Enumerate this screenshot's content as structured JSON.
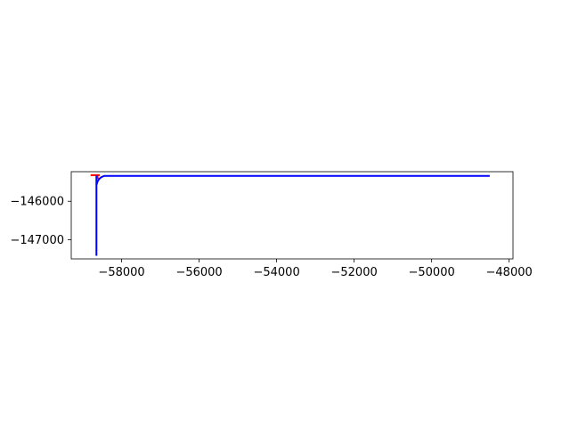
{
  "chart_data": {
    "type": "line",
    "title": "",
    "xlabel": "",
    "ylabel": "",
    "xlim": [
      -59300,
      -47900
    ],
    "ylim": [
      -147500,
      -145230
    ],
    "xticks": [
      -58000,
      -56000,
      -54000,
      -52000,
      -50000,
      -48000
    ],
    "xtick_labels": [
      "−58000",
      "−56000",
      "−54000",
      "−52000",
      "−50000",
      "−48000"
    ],
    "yticks": [
      -146000,
      -147000
    ],
    "ytick_labels": [
      "−146000",
      "−147000"
    ],
    "grid": false,
    "legend": "none",
    "series": [
      {
        "color": "#ff0000",
        "x": [
          -58800,
          -58560
        ],
        "y": [
          -145320,
          -145320
        ]
      },
      {
        "color": "#ff0000",
        "x": [
          -58620,
          -58620
        ],
        "y": [
          -145320,
          -145420
        ]
      },
      {
        "color": "#0000ff",
        "x": [
          -58650,
          -58650
        ],
        "y": [
          -145330,
          -147420
        ]
      },
      {
        "color": "#0000ff",
        "x": [
          -58650,
          -58620,
          -58580,
          -58520,
          -58450,
          -48500
        ],
        "y": [
          -145580,
          -145480,
          -145420,
          -145370,
          -145340,
          -145340
        ]
      }
    ]
  }
}
